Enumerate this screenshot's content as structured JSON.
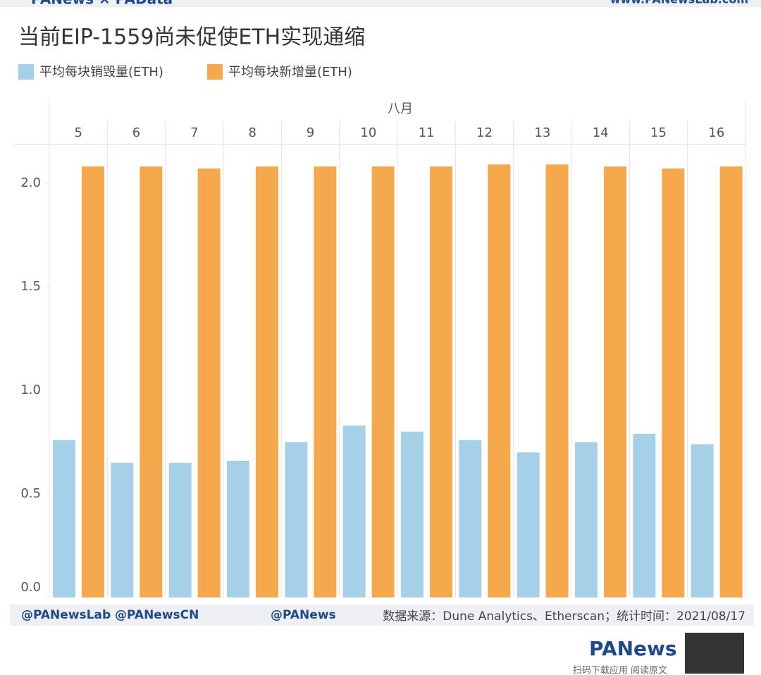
{
  "header": {
    "brand": "PANews × PAData",
    "url": "www.PANewsLab.com"
  },
  "chart_data": {
    "type": "bar",
    "title": "当前EIP-1559尚未促使ETH实现通缩",
    "group_label": "八月",
    "categories": [
      "5",
      "6",
      "7",
      "8",
      "9",
      "10",
      "11",
      "12",
      "13",
      "14",
      "15",
      "16"
    ],
    "series": [
      {
        "name": "平均每块销毁量(ETH)",
        "color": "#a6d0e8",
        "values": [
          0.76,
          0.65,
          0.65,
          0.66,
          0.75,
          0.83,
          0.8,
          0.76,
          0.7,
          0.75,
          0.79,
          0.74
        ]
      },
      {
        "name": "平均每块新增量(ETH)",
        "color": "#f5a94c",
        "values": [
          2.08,
          2.08,
          2.07,
          2.08,
          2.08,
          2.08,
          2.08,
          2.09,
          2.09,
          2.08,
          2.07,
          2.08
        ]
      }
    ],
    "ylim": [
      0,
      2.2
    ],
    "yticks": [
      {
        "value": 0,
        "label": "0.0"
      },
      {
        "value": 0.5,
        "label": "0.5"
      },
      {
        "value": 1,
        "label": "1.0"
      },
      {
        "value": 1.5,
        "label": "1.5"
      },
      {
        "value": 2,
        "label": "2.0"
      }
    ]
  },
  "footer": {
    "twitter": "@PANewsLab  @PANewsCN",
    "weibo": "@PANews",
    "source": "数据来源：Dune Analytics、Etherscan；统计时间：2021/08/17",
    "logo": "PANews",
    "qr_caption": "扫码下载应用 阅读原文"
  }
}
